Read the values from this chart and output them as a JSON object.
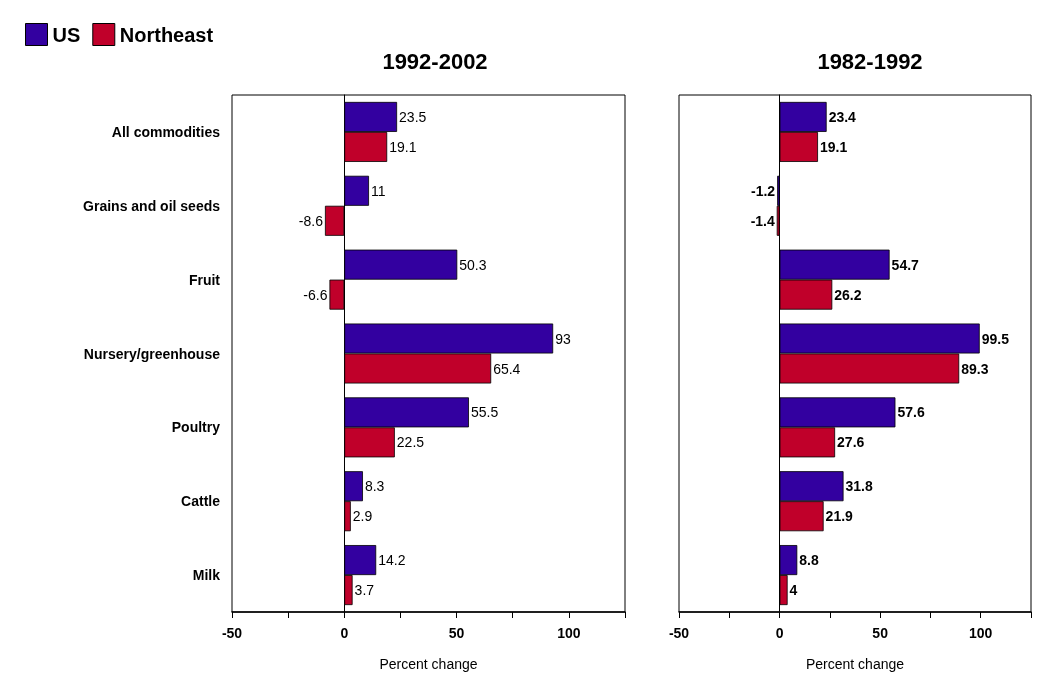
{
  "chart_data": [
    {
      "type": "bar",
      "orientation": "horizontal",
      "title": "1992-2002",
      "xlabel": "Percent change",
      "categories": [
        "All commodities",
        "Grains and oil seeds",
        "Fruit",
        "Nursery/greenhouse",
        "Poultry",
        "Cattle",
        "Milk"
      ],
      "series": [
        {
          "name": "US",
          "color": "#3300a0",
          "values": [
            23.5,
            11,
            50.3,
            93,
            55.5,
            8.3,
            14.2
          ]
        },
        {
          "name": "Northeast",
          "color": "#c0002a",
          "values": [
            19.1,
            -8.6,
            -6.6,
            65.4,
            22.5,
            2.9,
            3.7
          ]
        }
      ],
      "xlim": [
        -50,
        125
      ],
      "xticks": [
        -50,
        {
          "value": -25,
          "label": null
        },
        0,
        {
          "value": 25,
          "label": null
        },
        50,
        {
          "value": 75,
          "label": null
        },
        100,
        {
          "value": 125,
          "label": null
        }
      ],
      "data_labels": true,
      "legend": "top left"
    },
    {
      "type": "bar",
      "orientation": "horizontal",
      "title": "1982-1992",
      "xlabel": "Percent change",
      "categories": [
        null,
        null,
        null,
        null,
        null,
        null,
        null
      ],
      "series": [
        {
          "color": "#3300a0",
          "values": [
            23.4,
            -1.2,
            54.7,
            99.5,
            57.6,
            31.8,
            8.8
          ]
        },
        {
          "color": "#c0002a",
          "values": [
            19.1,
            -1.4,
            26.2,
            89.3,
            27.6,
            21.9,
            4
          ]
        }
      ],
      "xlim": [
        -50,
        125
      ],
      "xticks": [
        -50,
        {
          "value": -25,
          "label": null
        },
        0,
        {
          "value": 25,
          "label": null
        },
        50,
        {
          "value": 75,
          "label": null
        },
        100,
        {
          "value": 125,
          "label": null
        }
      ],
      "data_labels": true
    }
  ]
}
